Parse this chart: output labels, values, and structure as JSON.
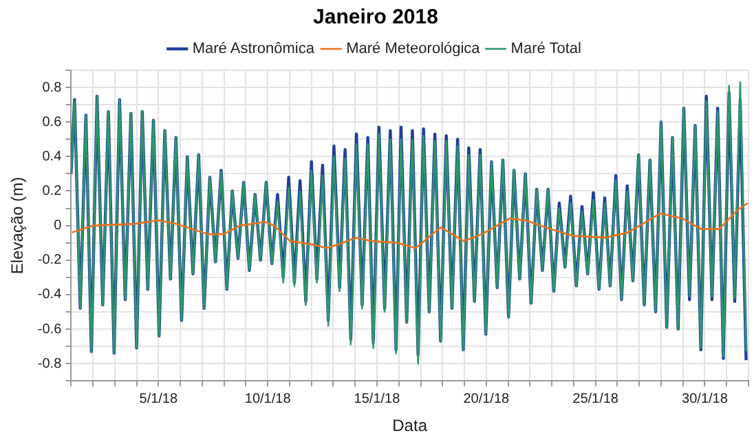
{
  "chart_data": {
    "type": "line",
    "title": "Janeiro 2018",
    "xlabel": "Data",
    "ylabel": "Elevação (m)",
    "legend": "top",
    "grid": true,
    "xlim": [
      "2018-01-01",
      "2018-02-01"
    ],
    "ylim": [
      -0.9,
      0.9
    ],
    "xticks": [
      {
        "value": "2018-01-01",
        "label": null
      },
      {
        "value": "2018-01-02",
        "label": null
      },
      {
        "value": "2018-01-03",
        "label": null
      },
      {
        "value": "2018-01-04",
        "label": null
      },
      {
        "value": "2018-01-05",
        "label": "5/1/18"
      },
      {
        "value": "2018-01-06",
        "label": null
      },
      {
        "value": "2018-01-07",
        "label": null
      },
      {
        "value": "2018-01-08",
        "label": null
      },
      {
        "value": "2018-01-09",
        "label": null
      },
      {
        "value": "2018-01-10",
        "label": "10/1/18"
      },
      {
        "value": "2018-01-11",
        "label": null
      },
      {
        "value": "2018-01-12",
        "label": null
      },
      {
        "value": "2018-01-13",
        "label": null
      },
      {
        "value": "2018-01-14",
        "label": null
      },
      {
        "value": "2018-01-15",
        "label": "15/1/18"
      },
      {
        "value": "2018-01-16",
        "label": null
      },
      {
        "value": "2018-01-17",
        "label": null
      },
      {
        "value": "2018-01-18",
        "label": null
      },
      {
        "value": "2018-01-19",
        "label": null
      },
      {
        "value": "2018-01-20",
        "label": "20/1/18"
      },
      {
        "value": "2018-01-21",
        "label": null
      },
      {
        "value": "2018-01-22",
        "label": null
      },
      {
        "value": "2018-01-23",
        "label": null
      },
      {
        "value": "2018-01-24",
        "label": null
      },
      {
        "value": "2018-01-25",
        "label": "25/1/18"
      },
      {
        "value": "2018-01-26",
        "label": null
      },
      {
        "value": "2018-01-27",
        "label": null
      },
      {
        "value": "2018-01-28",
        "label": null
      },
      {
        "value": "2018-01-29",
        "label": null
      },
      {
        "value": "2018-01-30",
        "label": "30/1/18"
      },
      {
        "value": "2018-01-31",
        "label": null
      },
      {
        "value": "2018-02-01",
        "label": null
      }
    ],
    "yticks": [
      {
        "value": -0.9,
        "label": null
      },
      -0.8,
      {
        "value": -0.7,
        "label": null
      },
      -0.6,
      {
        "value": -0.5,
        "label": null
      },
      -0.4,
      {
        "value": -0.3,
        "label": null
      },
      -0.2,
      {
        "value": -0.1,
        "label": null
      },
      0,
      {
        "value": 0.1,
        "label": null
      },
      0.2,
      {
        "value": 0.3,
        "label": null
      },
      0.4,
      {
        "value": 0.5,
        "label": null
      },
      0.6,
      {
        "value": 0.7,
        "label": null
      },
      0.8,
      {
        "value": 0.9,
        "label": null
      }
    ],
    "x": [
      "2018-01-01T00:00",
      "2018-01-01T03:50",
      "2018-01-01T10:05",
      "2018-01-01T16:19",
      "2018-01-01T22:19",
      "2018-01-02T04:34",
      "2018-01-02T10:48",
      "2018-01-02T17:02",
      "2018-01-02T23:17",
      "2018-01-03T05:17",
      "2018-01-03T11:31",
      "2018-01-03T17:46",
      "2018-01-04T00:00",
      "2018-01-04T06:14",
      "2018-01-04T12:14",
      "2018-01-04T18:29",
      "2018-01-05T00:43",
      "2018-01-05T06:58",
      "2018-01-05T13:12",
      "2018-01-05T19:12",
      "2018-01-06T01:26",
      "2018-01-06T07:41",
      "2018-01-06T13:55",
      "2018-01-06T20:10",
      "2018-01-07T02:10",
      "2018-01-07T08:24",
      "2018-01-07T14:38",
      "2018-01-07T20:53",
      "2018-01-08T03:07",
      "2018-01-08T09:07",
      "2018-01-08T15:22",
      "2018-01-08T21:36",
      "2018-01-09T03:50",
      "2018-01-09T10:05",
      "2018-01-09T16:05",
      "2018-01-09T22:19",
      "2018-01-10T04:34",
      "2018-01-10T10:48",
      "2018-01-10T17:02",
      "2018-01-10T23:02",
      "2018-01-11T05:17",
      "2018-01-11T11:31",
      "2018-01-11T17:46",
      "2018-01-12T00:00",
      "2018-01-12T06:00",
      "2018-01-12T12:14",
      "2018-01-12T18:29",
      "2018-01-13T00:43",
      "2018-01-13T06:58",
      "2018-01-13T12:58",
      "2018-01-13T19:12",
      "2018-01-14T01:26",
      "2018-01-14T07:41",
      "2018-01-14T13:55",
      "2018-01-14T19:55",
      "2018-01-15T02:10",
      "2018-01-15T08:24",
      "2018-01-15T14:38",
      "2018-01-15T20:53",
      "2018-01-16T02:24",
      "2018-01-16T08:38",
      "2018-01-16T14:53",
      "2018-01-16T21:07",
      "2018-01-17T03:07",
      "2018-01-17T09:22",
      "2018-01-17T15:36",
      "2018-01-17T21:50",
      "2018-01-18T04:05",
      "2018-01-18T10:19",
      "2018-01-18T16:34",
      "2018-01-18T22:48",
      "2018-01-19T04:48",
      "2018-01-19T11:02",
      "2018-01-19T17:17",
      "2018-01-19T23:31",
      "2018-01-20T05:46",
      "2018-01-20T12:00",
      "2018-01-20T18:14",
      "2018-01-21T00:29",
      "2018-01-21T06:29",
      "2018-01-21T12:43",
      "2018-01-21T18:58",
      "2018-01-22T01:12",
      "2018-01-22T07:26",
      "2018-01-22T13:41",
      "2018-01-22T19:55",
      "2018-01-23T02:10",
      "2018-01-23T08:10",
      "2018-01-23T14:24",
      "2018-01-23T20:38",
      "2018-01-24T02:53",
      "2018-01-24T09:07",
      "2018-01-24T15:22",
      "2018-01-24T21:36",
      "2018-01-25T03:50",
      "2018-01-25T10:05",
      "2018-01-25T16:05",
      "2018-01-25T22:19",
      "2018-01-26T04:34",
      "2018-01-26T10:48",
      "2018-01-26T17:02",
      "2018-01-26T23:17",
      "2018-01-27T05:31",
      "2018-01-27T11:46",
      "2018-01-27T18:00",
      "2018-01-28T00:00",
      "2018-01-28T06:14",
      "2018-01-28T12:29",
      "2018-01-28T18:43",
      "2018-01-29T00:58",
      "2018-01-29T07:12",
      "2018-01-29T13:26",
      "2018-01-29T19:41",
      "2018-01-30T01:41",
      "2018-01-30T07:55",
      "2018-01-30T14:10",
      "2018-01-30T20:24",
      "2018-01-31T02:38",
      "2018-01-31T08:53",
      "2018-01-31T14:53",
      "2018-01-31T21:22"
    ],
    "series": [
      {
        "name": "Maré Astronômica",
        "color": "#1f3f99",
        "values": [
          0.3,
          0.73,
          -0.48,
          0.64,
          -0.73,
          0.75,
          -0.46,
          0.66,
          -0.74,
          0.73,
          -0.43,
          0.65,
          -0.71,
          0.66,
          -0.37,
          0.61,
          -0.64,
          0.55,
          -0.31,
          0.51,
          -0.55,
          0.4,
          -0.28,
          0.41,
          -0.48,
          0.28,
          -0.21,
          0.32,
          -0.37,
          0.2,
          -0.19,
          0.25,
          -0.26,
          0.18,
          -0.2,
          0.25,
          -0.22,
          0.18,
          -0.3,
          0.28,
          -0.33,
          0.26,
          -0.44,
          0.37,
          -0.31,
          0.35,
          -0.55,
          0.46,
          -0.36,
          0.44,
          -0.66,
          0.53,
          -0.46,
          0.51,
          -0.68,
          0.57,
          -0.48,
          0.55,
          -0.72,
          0.57,
          -0.56,
          0.55,
          -0.75,
          0.56,
          -0.5,
          0.53,
          -0.67,
          0.52,
          -0.48,
          0.5,
          -0.72,
          0.45,
          -0.44,
          0.44,
          -0.63,
          0.37,
          -0.36,
          0.38,
          -0.53,
          0.32,
          -0.31,
          0.3,
          -0.45,
          0.21,
          -0.26,
          0.21,
          -0.38,
          0.13,
          -0.24,
          0.17,
          -0.35,
          0.11,
          -0.28,
          0.19,
          -0.37,
          0.16,
          -0.35,
          0.29,
          -0.43,
          0.23,
          -0.32,
          0.41,
          -0.46,
          0.38,
          -0.5,
          0.6,
          -0.59,
          0.51,
          -0.6,
          0.68,
          -0.43,
          0.58,
          -0.72,
          0.75,
          -0.43,
          0.68,
          -0.77,
          0.77,
          -0.44,
          0.73,
          -0.78
        ]
      },
      {
        "name": "Maré Meteorológica",
        "color": "#e8711c",
        "x": [
          "2018-01-01T01:12",
          "2018-01-02T00:43",
          "2018-01-03T21:50",
          "2018-01-05T00:00",
          "2018-01-05T19:12",
          "2018-01-07T06:14",
          "2018-01-07T23:46",
          "2018-01-08T17:17",
          "2018-01-09T20:53",
          "2018-01-10T06:58",
          "2018-01-11T00:29",
          "2018-01-12T01:41",
          "2018-01-12T16:34",
          "2018-01-13T05:02",
          "2018-01-14T01:12",
          "2018-01-14T18:43",
          "2018-01-15T22:19",
          "2018-01-16T18:29",
          "2018-01-17T22:05",
          "2018-01-18T23:02",
          "2018-01-19T19:12",
          "2018-01-21T01:12",
          "2018-01-21T18:43",
          "2018-01-22T22:19",
          "2018-01-23T23:31",
          "2018-01-25T10:34",
          "2018-01-26T11:46",
          "2018-01-27T22:48",
          "2018-01-28T23:46",
          "2018-01-29T19:55",
          "2018-01-30T15:50",
          "2018-01-31T12:00",
          "2018-01-31T23:02"
        ],
        "values": [
          -0.04,
          0.0,
          0.01,
          0.03,
          0.01,
          -0.05,
          -0.05,
          0.0,
          0.02,
          0.0,
          -0.09,
          -0.11,
          -0.13,
          -0.11,
          -0.07,
          -0.09,
          -0.1,
          -0.13,
          -0.01,
          -0.09,
          -0.05,
          0.04,
          0.03,
          -0.02,
          -0.06,
          -0.07,
          -0.04,
          0.07,
          0.04,
          -0.02,
          -0.02,
          0.09,
          0.13
        ]
      },
      {
        "name": "Maré Total",
        "color": "#2e9a6a",
        "values": [
          0.3,
          0.72,
          -0.48,
          0.64,
          -0.73,
          0.75,
          -0.46,
          0.66,
          -0.74,
          0.73,
          -0.43,
          0.65,
          -0.71,
          0.66,
          -0.37,
          0.61,
          -0.64,
          0.55,
          -0.31,
          0.51,
          -0.55,
          0.4,
          -0.28,
          0.41,
          -0.48,
          0.28,
          -0.21,
          0.31,
          -0.37,
          0.2,
          -0.19,
          0.25,
          -0.26,
          0.18,
          -0.2,
          0.25,
          -0.22,
          0.14,
          -0.33,
          0.22,
          -0.35,
          0.2,
          -0.46,
          0.32,
          -0.33,
          0.29,
          -0.58,
          0.4,
          -0.38,
          0.39,
          -0.69,
          0.47,
          -0.48,
          0.47,
          -0.71,
          0.53,
          -0.5,
          0.5,
          -0.74,
          0.5,
          -0.56,
          0.5,
          -0.8,
          0.52,
          -0.5,
          0.49,
          -0.67,
          0.49,
          -0.48,
          0.46,
          -0.72,
          0.41,
          -0.44,
          0.41,
          -0.63,
          0.37,
          -0.36,
          0.38,
          -0.53,
          0.32,
          -0.31,
          0.3,
          -0.45,
          0.21,
          -0.26,
          0.21,
          -0.38,
          0.1,
          -0.24,
          0.13,
          -0.35,
          0.08,
          -0.28,
          0.15,
          -0.37,
          0.13,
          -0.35,
          0.26,
          -0.43,
          0.2,
          -0.32,
          0.41,
          -0.46,
          0.38,
          -0.5,
          0.6,
          -0.59,
          0.51,
          -0.6,
          0.68,
          -0.41,
          0.58,
          -0.71,
          0.72,
          -0.41,
          0.66,
          -0.76,
          0.81,
          -0.42,
          0.83,
          -0.73
        ]
      }
    ]
  }
}
